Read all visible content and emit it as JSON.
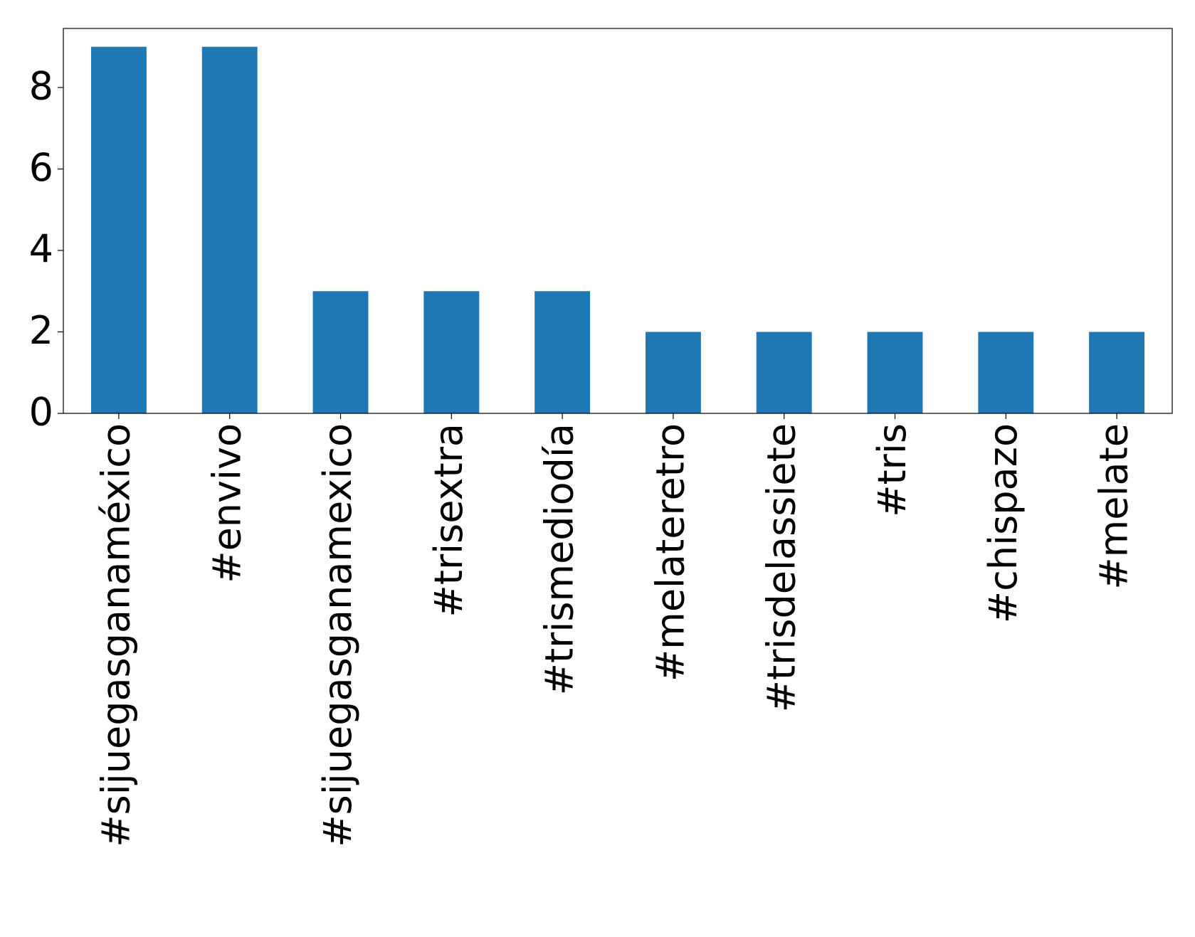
{
  "chart_data": {
    "type": "bar",
    "categories": [
      "#sijuegasganaméxico",
      "#envivo",
      "#sijuegasganamexico",
      "#trisextra",
      "#trismediodía",
      "#melateretro",
      "#trisdelassiete",
      "#tris",
      "#chispazo",
      "#melate"
    ],
    "values": [
      9,
      9,
      3,
      3,
      3,
      2,
      2,
      2,
      2,
      2
    ],
    "color": "#1f77b4",
    "ylim": [
      0,
      9.45
    ],
    "yticks": [
      0,
      2,
      4,
      6,
      8
    ],
    "grid": false
  }
}
